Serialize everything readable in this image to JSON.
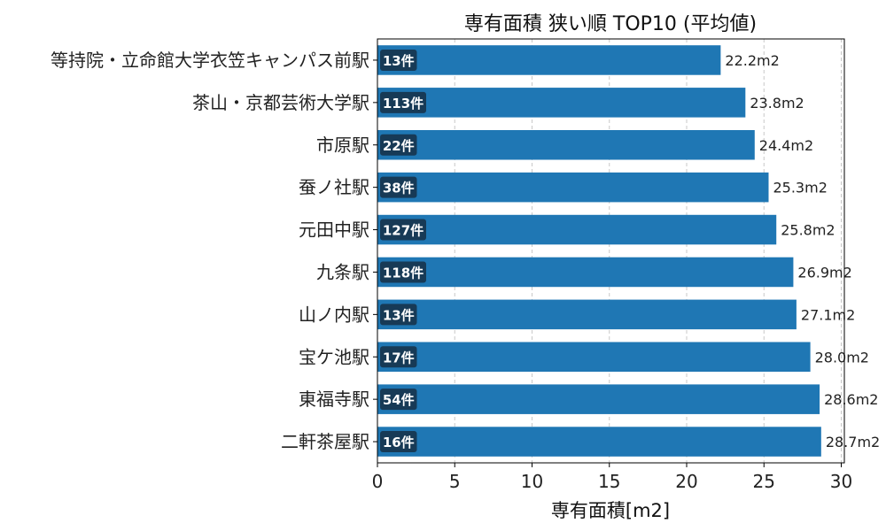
{
  "chart_data": {
    "type": "bar",
    "orientation": "horizontal",
    "title": "専有面積 狭い順 TOP10 (平均値)",
    "xlabel": "専有面積[m2]",
    "ylabel": "",
    "xlim": [
      0,
      30.2
    ],
    "xticks": [
      0,
      5,
      10,
      15,
      20,
      25,
      30
    ],
    "grid": "x-dashed",
    "categories": [
      "等持院・立命館大学衣笠キャンパス前駅",
      "茶山・京都芸術大学駅",
      "市原駅",
      "蚕ノ社駅",
      "元田中駅",
      "九条駅",
      "山ノ内駅",
      "宝ケ池駅",
      "東福寺駅",
      "二軒茶屋駅"
    ],
    "values": [
      22.2,
      23.8,
      24.4,
      25.3,
      25.8,
      26.9,
      27.1,
      28.0,
      28.6,
      28.7
    ],
    "value_labels": [
      "22.2m2",
      "23.8m2",
      "24.4m2",
      "25.3m2",
      "25.8m2",
      "26.9m2",
      "27.1m2",
      "28.0m2",
      "28.6m2",
      "28.7m2"
    ],
    "count_labels": [
      "13件",
      "113件",
      "22件",
      "38件",
      "127件",
      "118件",
      "13件",
      "17件",
      "54件",
      "16件"
    ],
    "colors": {
      "bar": "#1f77b4",
      "badge": "#173a56",
      "grid": "#c8c8c8",
      "axis": "#000000"
    }
  }
}
